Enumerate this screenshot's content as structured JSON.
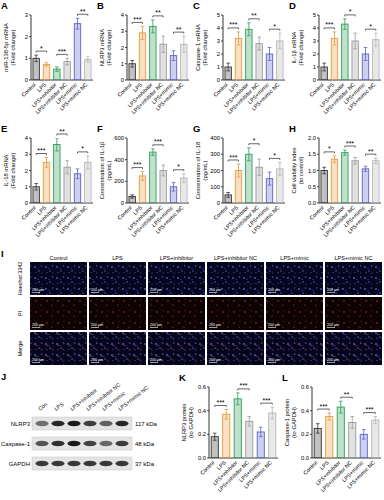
{
  "chart_data": [
    {
      "type": "bar",
      "panel": "A",
      "y_label": [
        "miR-138-5p mRNA",
        "(Fold change)"
      ],
      "categories": [
        "Control",
        "LPS",
        "LPS+inhibitor",
        "LPS+inhibitor NC",
        "LPS+mimic",
        "LPS+mimic NC"
      ],
      "values": [
        1.0,
        0.72,
        0.5,
        0.85,
        2.6,
        0.95
      ],
      "errors": [
        0.15,
        0.08,
        0.1,
        0.15,
        0.25,
        0.12
      ],
      "colors": [
        "#333333",
        "#e69a3c",
        "#2e9e57",
        "#9a9a9a",
        "#5b63c9",
        "#b5b5b5"
      ],
      "ylim": [
        0,
        3
      ],
      "yticks": [
        0,
        1,
        2,
        3
      ],
      "annotations": [
        {
          "text": "*",
          "groups": [
            0,
            1
          ]
        },
        {
          "text": "***",
          "groups": [
            2,
            3
          ]
        },
        {
          "text": "**",
          "groups": [
            4,
            5
          ]
        }
      ]
    },
    {
      "type": "bar",
      "panel": "B",
      "y_label": [
        "NLRP3 mRNA",
        "(Fold change)"
      ],
      "categories": [
        "Control",
        "LPS",
        "LPS+inhibitor",
        "LPS+inhibitor NC",
        "LPS+mimic",
        "LPS+mimic NC"
      ],
      "values": [
        1.0,
        2.9,
        3.3,
        2.2,
        1.5,
        2.2
      ],
      "errors": [
        0.2,
        0.4,
        0.4,
        0.5,
        0.3,
        0.5
      ],
      "colors": [
        "#333333",
        "#e69a3c",
        "#2e9e57",
        "#9a9a9a",
        "#5b63c9",
        "#b5b5b5"
      ],
      "ylim": [
        0,
        4
      ],
      "yticks": [
        0,
        1,
        2,
        3,
        4
      ],
      "annotations": [
        {
          "text": "***",
          "groups": [
            0,
            1
          ]
        },
        {
          "text": "**",
          "groups": [
            2,
            3
          ]
        },
        {
          "text": "**",
          "groups": [
            4,
            5
          ]
        }
      ]
    },
    {
      "type": "bar",
      "panel": "C",
      "y_label": [
        "Caspase-1 mRNA",
        "(Fold change)"
      ],
      "categories": [
        "Control",
        "LPS",
        "LPS+inhibitor",
        "LPS+inhibitor NC",
        "LPS+mimic",
        "LPS+mimic NC"
      ],
      "values": [
        1.0,
        3.2,
        3.9,
        2.8,
        2.0,
        3.0
      ],
      "errors": [
        0.3,
        0.5,
        0.5,
        0.5,
        0.5,
        0.6
      ],
      "colors": [
        "#333333",
        "#e69a3c",
        "#2e9e57",
        "#9a9a9a",
        "#5b63c9",
        "#b5b5b5"
      ],
      "ylim": [
        0,
        5
      ],
      "yticks": [
        0,
        1,
        2,
        3,
        4,
        5
      ],
      "annotations": [
        {
          "text": "***",
          "groups": [
            0,
            1
          ]
        },
        {
          "text": "**",
          "groups": [
            2,
            3
          ]
        },
        {
          "text": "*",
          "groups": [
            4,
            5
          ]
        }
      ]
    },
    {
      "type": "bar",
      "panel": "D",
      "y_label": [
        "IL-1β mRNA",
        "(Fold change)"
      ],
      "categories": [
        "Control",
        "LPS",
        "LPS+inhibitor",
        "LPS+inhibitor NC",
        "LPS+mimic",
        "LPS+mimic NC"
      ],
      "values": [
        1.0,
        3.2,
        4.3,
        3.0,
        2.0,
        3.1
      ],
      "errors": [
        0.3,
        0.5,
        0.4,
        0.6,
        0.5,
        0.5
      ],
      "colors": [
        "#333333",
        "#e69a3c",
        "#2e9e57",
        "#9a9a9a",
        "#5b63c9",
        "#b5b5b5"
      ],
      "ylim": [
        0,
        5
      ],
      "yticks": [
        0,
        1,
        2,
        3,
        4,
        5
      ],
      "annotations": [
        {
          "text": "***",
          "groups": [
            0,
            1
          ]
        },
        {
          "text": "*",
          "groups": [
            2,
            3
          ]
        },
        {
          "text": "*",
          "groups": [
            4,
            5
          ]
        }
      ]
    },
    {
      "type": "bar",
      "panel": "E",
      "y_label": [
        "IL-18 mRNA",
        "(Fold change)"
      ],
      "categories": [
        "Control",
        "LPS",
        "LPS+inhibitor",
        "LPS+inhibitor NC",
        "LPS+mimic",
        "LPS+mimic NC"
      ],
      "values": [
        1.0,
        2.5,
        3.6,
        2.2,
        1.8,
        2.5
      ],
      "errors": [
        0.2,
        0.3,
        0.4,
        0.4,
        0.3,
        0.4
      ],
      "colors": [
        "#333333",
        "#e69a3c",
        "#2e9e57",
        "#9a9a9a",
        "#5b63c9",
        "#b5b5b5"
      ],
      "ylim": [
        0,
        4
      ],
      "yticks": [
        0,
        1,
        2,
        3,
        4
      ],
      "annotations": [
        {
          "text": "***",
          "groups": [
            0,
            1
          ]
        },
        {
          "text": "**",
          "groups": [
            2,
            3
          ]
        },
        {
          "text": "*",
          "groups": [
            4,
            5
          ]
        }
      ]
    },
    {
      "type": "bar",
      "panel": "F",
      "y_label": [
        "Concentration of IL-1β",
        "(pg/mL)"
      ],
      "categories": [
        "Control",
        "LPS",
        "LPS+inhibitor",
        "LPS+inhibitor NC",
        "LPS+mimic",
        "LPS+mimic NC"
      ],
      "values": [
        60,
        250,
        470,
        300,
        150,
        230
      ],
      "errors": [
        15,
        40,
        30,
        50,
        40,
        40
      ],
      "colors": [
        "#333333",
        "#e69a3c",
        "#2e9e57",
        "#9a9a9a",
        "#5b63c9",
        "#b5b5b5"
      ],
      "ylim": [
        0,
        600
      ],
      "yticks": [
        0,
        200,
        400,
        600
      ],
      "annotations": [
        {
          "text": "***",
          "groups": [
            0,
            1
          ]
        },
        {
          "text": "***",
          "groups": [
            2,
            3
          ]
        },
        {
          "text": "*",
          "groups": [
            4,
            5
          ]
        }
      ]
    },
    {
      "type": "bar",
      "panel": "G",
      "y_label": [
        "Concentration of IL-18",
        "(pg/mL)"
      ],
      "categories": [
        "Control",
        "LPS",
        "LPS+inhibitor",
        "LPS+inhibitor NC",
        "LPS+mimic",
        "LPS+mimic NC"
      ],
      "values": [
        50,
        200,
        300,
        220,
        150,
        210
      ],
      "errors": [
        15,
        40,
        40,
        50,
        40,
        40
      ],
      "colors": [
        "#333333",
        "#e69a3c",
        "#2e9e57",
        "#9a9a9a",
        "#5b63c9",
        "#b5b5b5"
      ],
      "ylim": [
        0,
        400
      ],
      "yticks": [
        0,
        100,
        200,
        300,
        400
      ],
      "annotations": [
        {
          "text": "***",
          "groups": [
            0,
            1
          ]
        },
        {
          "text": "*",
          "groups": [
            2,
            3
          ]
        },
        {
          "text": "*",
          "groups": [
            4,
            5
          ]
        }
      ]
    },
    {
      "type": "bar",
      "panel": "H",
      "y_label": [
        "Cell viability index",
        "(to control)"
      ],
      "categories": [
        "Control",
        "LPS",
        "LPS+inhibitor",
        "LPS+inhibitor NC",
        "LPS+mimic",
        "LPS+mimic NC"
      ],
      "values": [
        1.0,
        1.35,
        1.55,
        1.3,
        1.05,
        1.3
      ],
      "errors": [
        0.1,
        0.1,
        0.08,
        0.1,
        0.08,
        0.08
      ],
      "colors": [
        "#333333",
        "#e69a3c",
        "#2e9e57",
        "#9a9a9a",
        "#5b63c9",
        "#b5b5b5"
      ],
      "ylim": [
        0,
        2
      ],
      "yticks": [
        {
          "value": 0,
          "label": "0.0"
        },
        0.5,
        {
          "value": 1,
          "label": "1.0"
        },
        1.5,
        {
          "value": 2,
          "label": "2.0"
        }
      ],
      "annotations": [
        {
          "text": "*",
          "groups": [
            0,
            1
          ]
        },
        {
          "text": "***",
          "groups": [
            2,
            3
          ]
        },
        {
          "text": "**",
          "groups": [
            4,
            5
          ]
        }
      ]
    },
    {
      "type": "bar",
      "panel": "K",
      "y_label": [
        "NLRP3 protein",
        "(to GAPDH)"
      ],
      "categories": [
        "Control",
        "LPS",
        "LPS+inhibitor",
        "LPS+inhibitor NC",
        "LPS+mimic",
        "LPS+mimic NC"
      ],
      "values": [
        0.18,
        0.37,
        0.5,
        0.31,
        0.22,
        0.38
      ],
      "errors": [
        0.03,
        0.04,
        0.05,
        0.04,
        0.04,
        0.05
      ],
      "colors": [
        "#333333",
        "#e69a3c",
        "#2e9e57",
        "#9a9a9a",
        "#5b63c9",
        "#b5b5b5"
      ],
      "ylim": [
        0,
        0.6
      ],
      "yticks": [
        {
          "value": 0,
          "label": "0.0"
        },
        0.2,
        0.4,
        0.6
      ],
      "annotations": [
        {
          "text": "***",
          "groups": [
            0,
            1
          ]
        },
        {
          "text": "***",
          "groups": [
            2,
            3
          ]
        },
        {
          "text": "***",
          "groups": [
            4,
            5
          ]
        }
      ]
    },
    {
      "type": "bar",
      "panel": "L",
      "y_label": [
        "Caspase-1 protein",
        "(to GAPDH)"
      ],
      "categories": [
        "Control",
        "LPS",
        "LPS+inhibitor",
        "LPS+inhibitor NC",
        "LPS+mimic",
        "LPS+mimic NC"
      ],
      "values": [
        0.25,
        0.35,
        0.43,
        0.3,
        0.2,
        0.32
      ],
      "errors": [
        0.04,
        0.03,
        0.05,
        0.05,
        0.04,
        0.03
      ],
      "colors": [
        "#333333",
        "#e69a3c",
        "#2e9e57",
        "#9a9a9a",
        "#5b63c9",
        "#b5b5b5"
      ],
      "ylim": [
        0,
        0.6
      ],
      "yticks": [
        {
          "value": 0,
          "label": "0.0"
        },
        0.2,
        0.4,
        0.6
      ],
      "annotations": [
        {
          "text": "***",
          "groups": [
            0,
            1
          ]
        },
        {
          "text": "**",
          "groups": [
            2,
            3
          ]
        },
        {
          "text": "***",
          "groups": [
            4,
            5
          ]
        }
      ]
    }
  ],
  "image_panel": {
    "panel": "I",
    "columns": [
      "Control",
      "LPS",
      "LPS+inhibitor",
      "LPS+inhibitor NC",
      "LPS+mimic",
      "LPS+mimic NC"
    ],
    "rows": [
      "Hoechst 3342",
      "PI",
      "Merge"
    ],
    "scale_bar": "200 μm"
  },
  "blot_panel": {
    "panel": "J",
    "columns": [
      "Con",
      "LPS",
      "LPS+inhibitor",
      "LPS+inhibitor NC",
      "LPS+mimic",
      "LPS+mimic NC"
    ],
    "rows": [
      {
        "label": "NLRP3",
        "size": "117 kDa"
      },
      {
        "label": "Caspase-1",
        "size": "48 kDa"
      },
      {
        "label": "GAPDH",
        "size": "37 kDa"
      }
    ]
  }
}
